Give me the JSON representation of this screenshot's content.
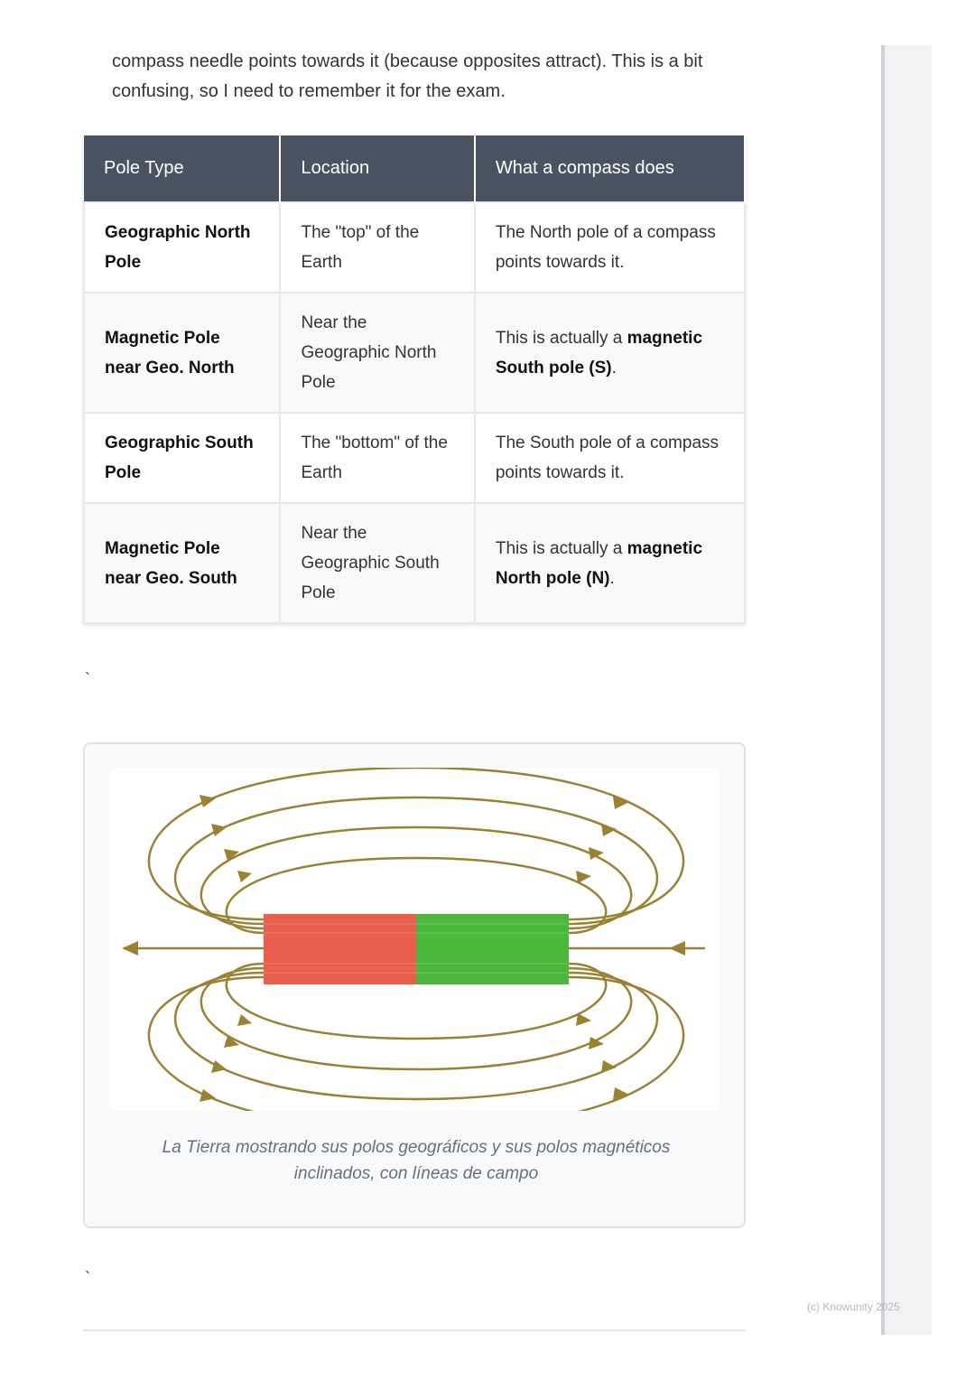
{
  "intro": "compass needle points towards it (because opposites attract). This is a bit confusing, so I need to remember it for the exam.",
  "table": {
    "headers": [
      "Pole Type",
      "Location",
      "What a compass does"
    ],
    "rows": [
      [
        [
          {
            "text": "Geographic North Pole",
            "bold": true
          }
        ],
        [
          {
            "text": "The \"top\" of the Earth"
          }
        ],
        [
          {
            "text": "The North pole of a compass points towards it."
          }
        ]
      ],
      [
        [
          {
            "text": "Magnetic Pole near Geo. North",
            "bold": true
          }
        ],
        [
          {
            "text": "Near the Geographic North Pole"
          }
        ],
        [
          {
            "text": "This is actually a "
          },
          {
            "text": "magnetic South pole (S)",
            "bold": true
          },
          {
            "text": "."
          }
        ]
      ],
      [
        [
          {
            "text": "Geographic South Pole",
            "bold": true
          }
        ],
        [
          {
            "text": "The \"bottom\" of the Earth"
          }
        ],
        [
          {
            "text": "The South pole of a compass points towards it."
          }
        ]
      ],
      [
        [
          {
            "text": "Magnetic Pole near Geo. South",
            "bold": true
          }
        ],
        [
          {
            "text": "Near the Geographic South Pole"
          }
        ],
        [
          {
            "text": "This is actually a "
          },
          {
            "text": "magnetic North pole (N)",
            "bold": true
          },
          {
            "text": "."
          }
        ]
      ]
    ]
  },
  "separators": [
    "`",
    "`"
  ],
  "figure": {
    "caption": "La Tierra mostrando sus polos geográficos y sus polos magnéticos inclinados, con líneas de campo"
  },
  "footer": "(c) Knowunity 2025"
}
